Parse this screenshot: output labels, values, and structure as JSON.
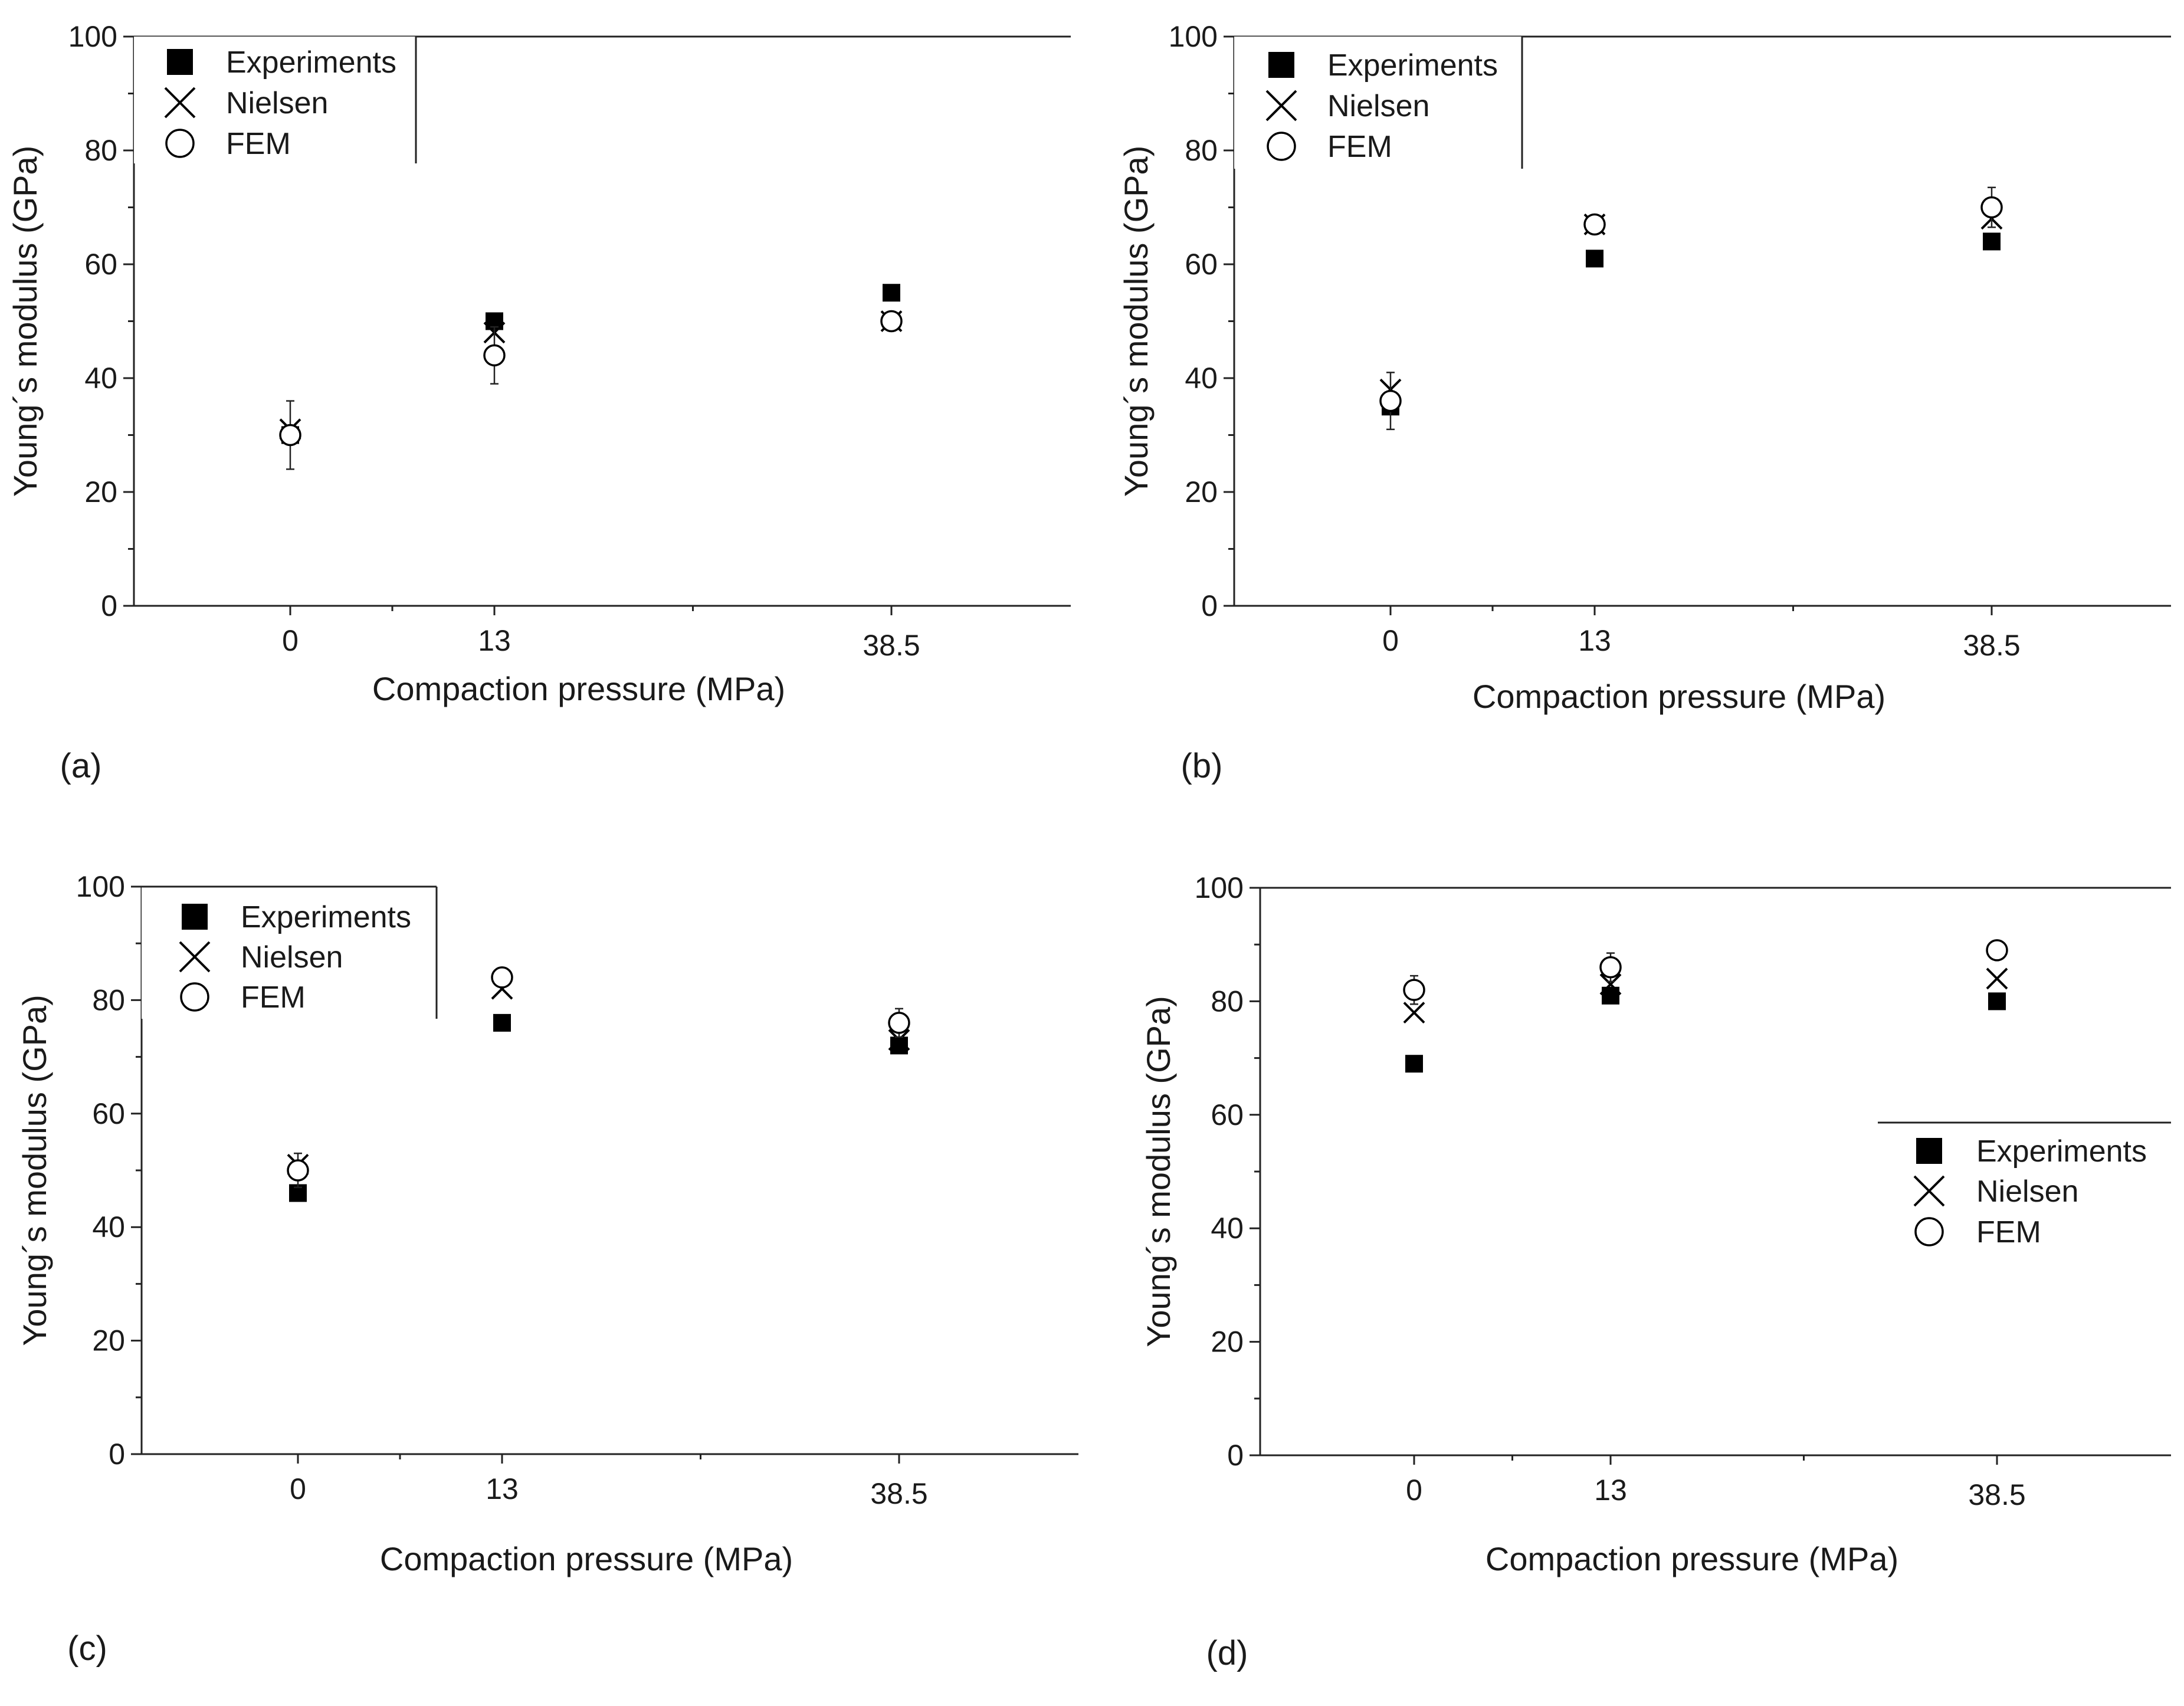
{
  "chart_data": [
    {
      "panel_label": "(a)",
      "type": "scatter",
      "title": "",
      "xlabel": "Compaction pressure (MPa)",
      "ylabel": "Young´s modulus (GPa)",
      "ylim": [
        0,
        100
      ],
      "yticks": [
        "0",
        "20",
        "40",
        "60",
        "80",
        "100"
      ],
      "categories": [
        "0",
        "13",
        "38.5"
      ],
      "legend": {
        "placement": "top-left",
        "entries": [
          "Experiments",
          "Nielsen",
          "FEM"
        ]
      },
      "series": [
        {
          "name": "Experiments",
          "marker": "square",
          "values": [
            30,
            50,
            55
          ]
        },
        {
          "name": "Nielsen",
          "marker": "x",
          "values": [
            31,
            48,
            50
          ]
        },
        {
          "name": "FEM",
          "marker": "circle",
          "values": [
            30,
            44,
            50
          ],
          "error": [
            6,
            5,
            0
          ]
        }
      ]
    },
    {
      "panel_label": "(b)",
      "type": "scatter",
      "title": "",
      "xlabel": "Compaction pressure (MPa)",
      "ylabel": "Young´s modulus (GPa)",
      "ylim": [
        0,
        100
      ],
      "yticks": [
        "0",
        "20",
        "40",
        "60",
        "80",
        "100"
      ],
      "categories": [
        "0",
        "13",
        "38.5"
      ],
      "legend": {
        "placement": "top-left",
        "entries": [
          "Experiments",
          "Nielsen",
          "FEM"
        ]
      },
      "series": [
        {
          "name": "Experiments",
          "marker": "square",
          "values": [
            35,
            61,
            64
          ]
        },
        {
          "name": "Nielsen",
          "marker": "x",
          "values": [
            38,
            67,
            68
          ]
        },
        {
          "name": "FEM",
          "marker": "circle",
          "values": [
            36,
            67,
            70
          ],
          "error": [
            5,
            1.5,
            3.5
          ]
        }
      ]
    },
    {
      "panel_label": "(c)",
      "type": "scatter",
      "title": "",
      "xlabel": "Compaction pressure (MPa)",
      "ylabel": "Young´s modulus (GPa)",
      "ylim": [
        0,
        100
      ],
      "yticks": [
        "0",
        "20",
        "40",
        "60",
        "80",
        "100"
      ],
      "categories": [
        "0",
        "13",
        "38.5"
      ],
      "legend": {
        "placement": "top-left",
        "entries": [
          "Experiments",
          "Nielsen",
          "FEM"
        ]
      },
      "series": [
        {
          "name": "Experiments",
          "marker": "square",
          "values": [
            46,
            76,
            72
          ]
        },
        {
          "name": "Nielsen",
          "marker": "x",
          "values": [
            51,
            82,
            73
          ]
        },
        {
          "name": "FEM",
          "marker": "circle",
          "values": [
            50,
            84,
            76
          ],
          "error": [
            3,
            0,
            2.5
          ]
        }
      ]
    },
    {
      "panel_label": "(d)",
      "type": "scatter",
      "title": "",
      "xlabel": "Compaction pressure (MPa)",
      "ylabel": "Young´s modulus (GPa)",
      "ylim": [
        0,
        100
      ],
      "yticks": [
        "0",
        "20",
        "40",
        "60",
        "80",
        "100"
      ],
      "categories": [
        "0",
        "13",
        "38.5"
      ],
      "legend": {
        "placement": "right",
        "entries": [
          "Experiments",
          "Nielsen",
          "FEM"
        ]
      },
      "series": [
        {
          "name": "Experiments",
          "marker": "square",
          "values": [
            69,
            81,
            80
          ]
        },
        {
          "name": "Nielsen",
          "marker": "x",
          "values": [
            78,
            83,
            84
          ]
        },
        {
          "name": "FEM",
          "marker": "circle",
          "values": [
            82,
            86,
            89
          ],
          "error": [
            2.5,
            2.5,
            0
          ]
        }
      ]
    }
  ]
}
